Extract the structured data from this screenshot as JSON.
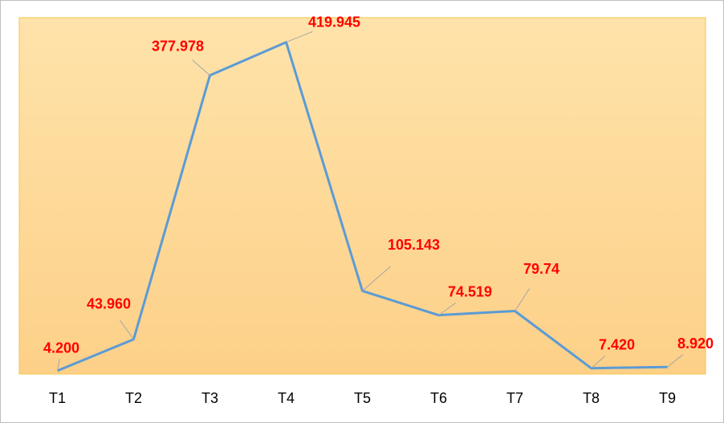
{
  "chart_data": {
    "type": "line",
    "categories": [
      "T1",
      "T2",
      "T3",
      "T4",
      "T5",
      "T6",
      "T7",
      "T8",
      "T9"
    ],
    "values": [
      4.2,
      43.96,
      377.978,
      419.945,
      105.143,
      74.519,
      79.74,
      7.42,
      8.92
    ],
    "value_labels": [
      "4.200",
      "43.960",
      "377.978",
      "419.945",
      "105.143",
      "74.519",
      "79.74",
      "7.420",
      "8.920"
    ],
    "color": "#5b9bd5",
    "ylim": [
      0,
      451
    ]
  }
}
